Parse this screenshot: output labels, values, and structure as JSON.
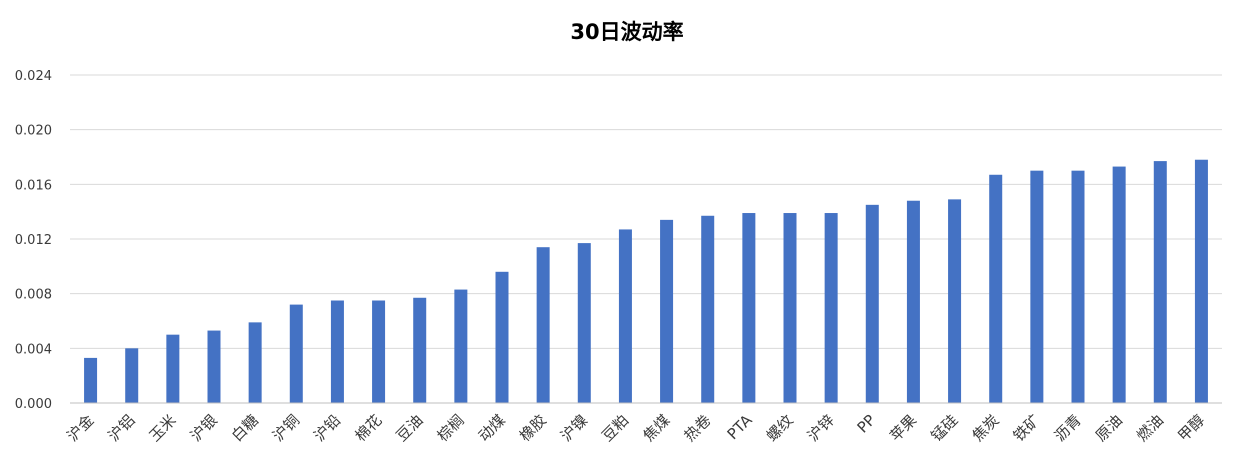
{
  "chart_data": {
    "type": "bar",
    "title": "30日波动率",
    "xlabel": "",
    "ylabel": "",
    "categories": [
      "沪金",
      "沪铝",
      "玉米",
      "沪银",
      "白糖",
      "沪铜",
      "沪铅",
      "棉花",
      "豆油",
      "棕榈",
      "动煤",
      "橡胶",
      "沪镍",
      "豆粕",
      "焦煤",
      "热卷",
      "PTA",
      "螺纹",
      "沪锌",
      "PP",
      "苹果",
      "锰硅",
      "焦炭",
      "铁矿",
      "沥青",
      "原油",
      "燃油",
      "甲醇"
    ],
    "values": [
      0.0033,
      0.004,
      0.005,
      0.0053,
      0.0059,
      0.0072,
      0.0075,
      0.0075,
      0.0077,
      0.0083,
      0.0096,
      0.0114,
      0.0117,
      0.0127,
      0.0134,
      0.0137,
      0.0139,
      0.0139,
      0.0139,
      0.0145,
      0.0148,
      0.0149,
      0.0167,
      0.017,
      0.017,
      0.0173,
      0.0177,
      0.0178
    ],
    "ylim": [
      0,
      0.024
    ],
    "yticks": [
      "0.000",
      "0.004",
      "0.008",
      "0.012",
      "0.016",
      "0.020",
      "0.024"
    ],
    "grid": true,
    "legend": "none",
    "bar_color": "#4472C4"
  }
}
